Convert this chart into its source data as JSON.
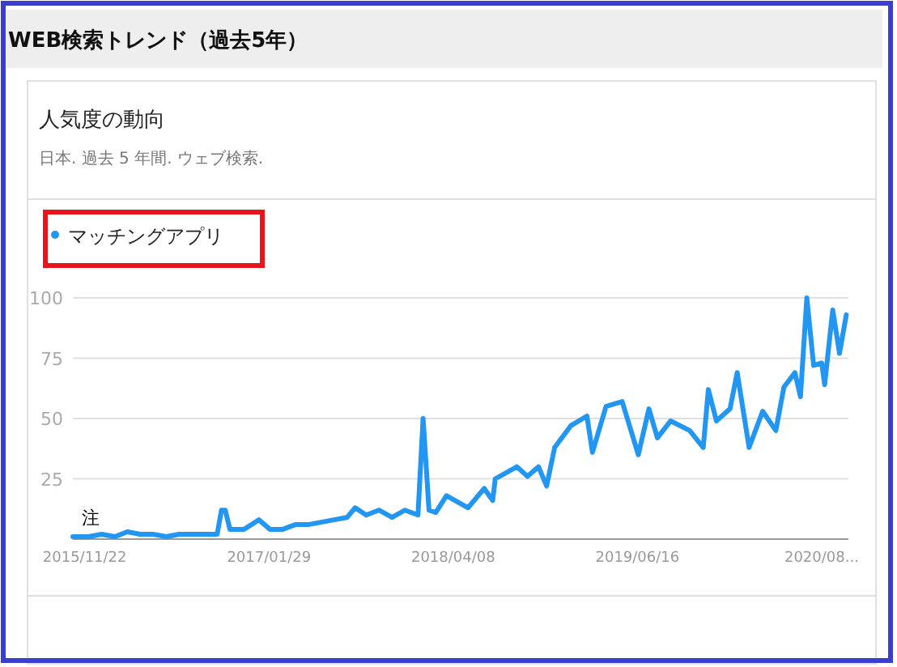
{
  "chart_data": {
    "type": "line",
    "title": "WEB検索トレンド（過去5年）",
    "subtitle": "人気度の動向",
    "annotations": [
      "日本. 過去 5 年間. ウェブ検索.",
      {
        "text": "注",
        "x": "2015-12-06",
        "y": 1
      }
    ],
    "xlim": [
      "2015-10-25",
      "2020-10-25"
    ],
    "xticks": [
      {
        "value": "2015-11-22",
        "label": "2015/11/22"
      },
      {
        "value": "2017-01-29",
        "label": "2017/01/29"
      },
      {
        "value": "2018-04-08",
        "label": "2018/04/08"
      },
      {
        "value": "2019-06-16",
        "label": "2019/06/16"
      },
      {
        "value": "2020-08-23",
        "label": "2020/08..."
      }
    ],
    "ylim": [
      0,
      100
    ],
    "yticks": [
      25,
      50,
      75,
      100
    ],
    "grid": "y",
    "legend": "top left",
    "series": [
      {
        "name": "マッチングアプリ",
        "color": "#2196f3",
        "x": [
          "2015-10-25",
          "2015-12-01",
          "2016-01-01",
          "2016-02-01",
          "2016-03-01",
          "2016-04-01",
          "2016-05-01",
          "2016-06-01",
          "2016-07-01",
          "2016-08-01",
          "2016-09-01",
          "2016-09-29",
          "2016-10-09",
          "2016-10-18",
          "2016-10-29",
          "2016-12-01",
          "2017-01-05",
          "2017-02-01",
          "2017-03-01",
          "2017-04-01",
          "2017-05-01",
          "2017-06-01",
          "2017-07-01",
          "2017-08-01",
          "2017-08-20",
          "2017-09-15",
          "2017-10-15",
          "2017-11-15",
          "2017-12-15",
          "2018-01-15",
          "2018-01-27",
          "2018-02-10",
          "2018-02-26",
          "2018-03-23",
          "2018-05-13",
          "2018-06-20",
          "2018-07-10",
          "2018-07-16",
          "2018-09-05",
          "2018-09-30",
          "2018-10-26",
          "2018-11-14",
          "2018-12-03",
          "2019-01-10",
          "2019-02-17",
          "2019-03-02",
          "2019-04-03",
          "2019-05-11",
          "2019-06-18",
          "2019-07-13",
          "2019-08-02",
          "2019-09-02",
          "2019-10-17",
          "2019-11-18",
          "2019-11-30",
          "2019-12-19",
          "2020-01-20",
          "2020-02-06",
          "2020-03-05",
          "2020-04-06",
          "2020-05-07",
          "2020-05-26",
          "2020-06-21",
          "2020-07-04",
          "2020-07-19",
          "2020-08-04",
          "2020-08-23",
          "2020-08-30",
          "2020-09-18",
          "2020-10-04",
          "2020-10-20"
        ],
        "values": [
          1,
          1,
          2,
          1,
          3,
          2,
          2,
          1,
          2,
          2,
          2,
          2,
          12,
          12,
          4,
          4,
          8,
          4,
          4,
          6,
          6,
          7,
          8,
          9,
          13,
          10,
          12,
          9,
          12,
          10,
          50,
          12,
          11,
          18,
          13,
          21,
          16,
          25,
          30,
          26,
          30,
          22,
          38,
          47,
          51,
          36,
          55,
          57,
          35,
          54,
          42,
          49,
          45,
          38,
          62,
          49,
          54,
          69,
          38,
          53,
          45,
          63,
          69,
          59,
          100,
          72,
          73,
          64,
          95,
          77,
          93
        ]
      }
    ]
  }
}
